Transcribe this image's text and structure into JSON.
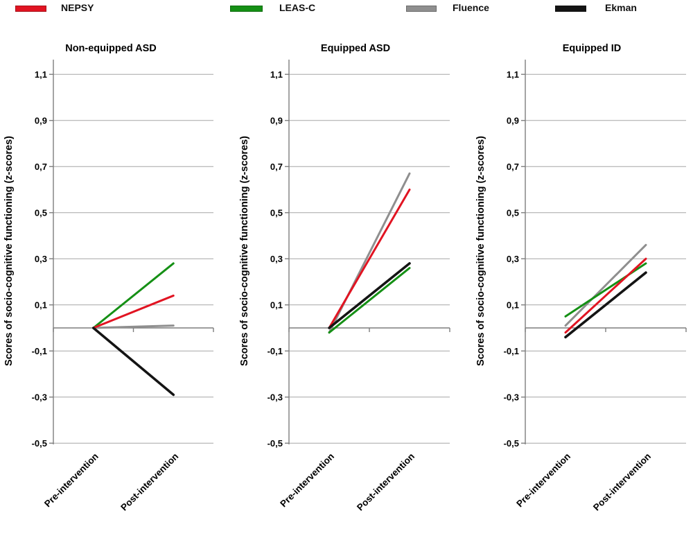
{
  "legend": {
    "items": [
      {
        "label": "NEPSY",
        "color": "#e11422"
      },
      {
        "label": "LEAS-C",
        "color": "#159015"
      },
      {
        "label": "Fluence",
        "color": "#8f8f8f"
      },
      {
        "label": "Ekman",
        "color": "#141414"
      }
    ]
  },
  "chart_data": {
    "type": "line",
    "categories": [
      "Pre-intervention",
      "Post-intervention"
    ],
    "ylabel": "Scores of socio-cognitive functioning (z-scores)",
    "ylim": [
      -0.5,
      1.1
    ],
    "ytick_step": 0.2,
    "ytick_values": [
      1.1,
      0.9,
      0.7,
      0.5,
      0.3,
      0.1,
      -0.1,
      -0.3,
      -0.5
    ],
    "ytick_labels": [
      "1,1",
      "0,9",
      "0,7",
      "0,5",
      "0,3",
      "0,1",
      "-0,1",
      "-0,3",
      "-0,5"
    ],
    "grid": true,
    "legend_position": "top",
    "panels": [
      {
        "title": "Non-equipped ASD",
        "series": [
          {
            "name": "NEPSY",
            "values": [
              0.0,
              0.14
            ]
          },
          {
            "name": "LEAS-C",
            "values": [
              0.0,
              0.28
            ]
          },
          {
            "name": "Fluence",
            "values": [
              0.0,
              0.01
            ]
          },
          {
            "name": "Ekman",
            "values": [
              0.0,
              -0.29
            ]
          }
        ]
      },
      {
        "title": "Equipped ASD",
        "series": [
          {
            "name": "NEPSY",
            "values": [
              0.0,
              0.6
            ]
          },
          {
            "name": "LEAS-C",
            "values": [
              -0.02,
              0.26
            ]
          },
          {
            "name": "Fluence",
            "values": [
              -0.02,
              0.67
            ]
          },
          {
            "name": "Ekman",
            "values": [
              0.0,
              0.28
            ]
          }
        ]
      },
      {
        "title": "Equipped ID",
        "series": [
          {
            "name": "NEPSY",
            "values": [
              -0.02,
              0.3
            ]
          },
          {
            "name": "LEAS-C",
            "values": [
              0.05,
              0.28
            ]
          },
          {
            "name": "Fluence",
            "values": [
              0.01,
              0.36
            ]
          },
          {
            "name": "Ekman",
            "values": [
              -0.04,
              0.24
            ]
          }
        ]
      }
    ]
  }
}
